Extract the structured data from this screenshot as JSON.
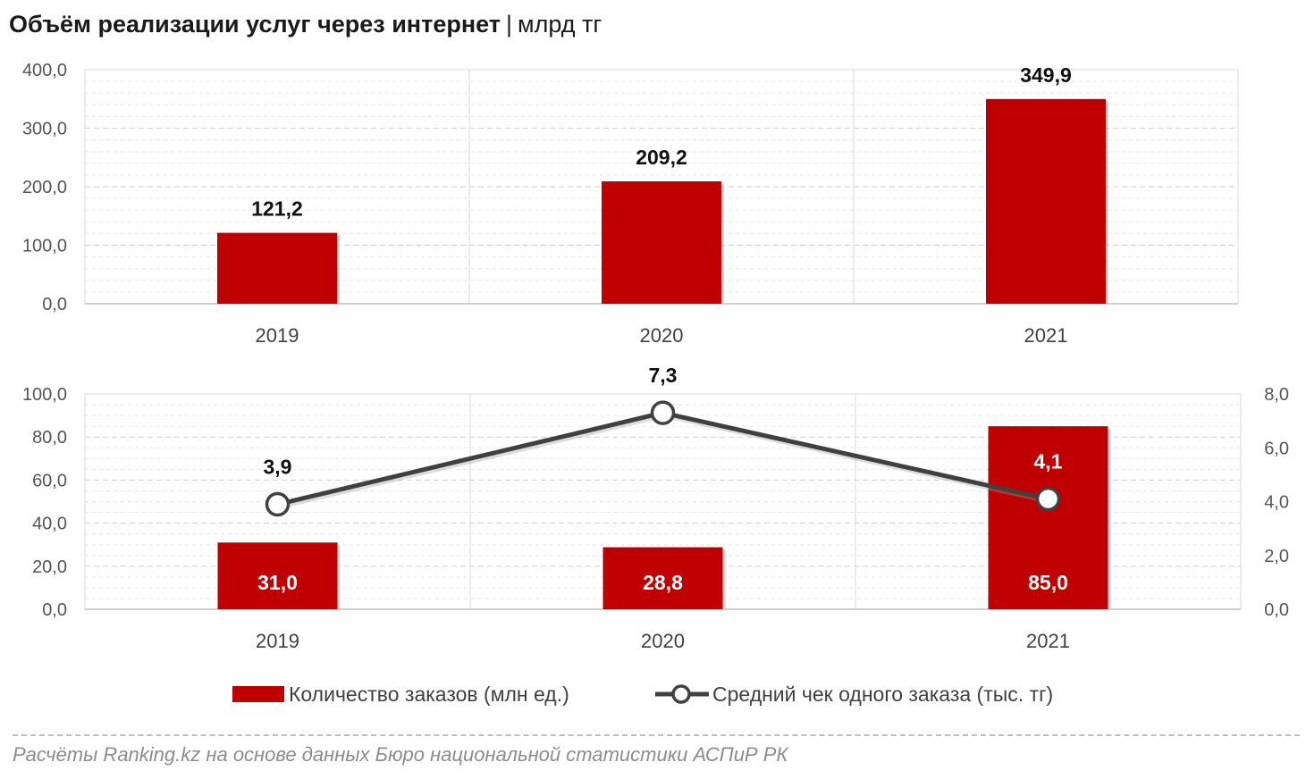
{
  "title": {
    "main": "Объём реализации услуг через интернет",
    "separator": "|",
    "unit": "млрд тг"
  },
  "chart_data": [
    {
      "type": "bar",
      "categories": [
        "2019",
        "2020",
        "2021"
      ],
      "values": [
        121.2,
        209.2,
        349.9
      ],
      "value_labels": [
        "121,2",
        "209,2",
        "349,9"
      ],
      "ylim": [
        0,
        400
      ],
      "yticks": [
        "0,0",
        "100,0",
        "200,0",
        "300,0",
        "400,0"
      ],
      "grid": true,
      "bar_color": "#c00000"
    },
    {
      "type": "bar+line",
      "categories": [
        "2019",
        "2020",
        "2021"
      ],
      "series": [
        {
          "name": "Количество заказов (млн ед.)",
          "type": "bar",
          "axis": "left",
          "values": [
            31.0,
            28.8,
            85.0
          ],
          "value_labels": [
            "31,0",
            "28,8",
            "85,0"
          ],
          "color": "#c00000"
        },
        {
          "name": "Средний чек одного заказа (тыс. тг)",
          "type": "line",
          "axis": "right",
          "values": [
            3.9,
            7.3,
            4.1
          ],
          "value_labels": [
            "3,9",
            "7,3",
            "4,1"
          ],
          "color": "#404040"
        }
      ],
      "ylim_left": [
        0,
        100
      ],
      "yticks_left": [
        "0,0",
        "20,0",
        "40,0",
        "60,0",
        "80,0",
        "100,0"
      ],
      "ylim_right": [
        0,
        8
      ],
      "yticks_right": [
        "0,0",
        "2,0",
        "4,0",
        "6,0",
        "8,0"
      ],
      "grid": true,
      "legend_position": "bottom"
    }
  ],
  "source": "Расчёты Ranking.kz на основе данных Бюро национальной статистики АСПиР РК"
}
